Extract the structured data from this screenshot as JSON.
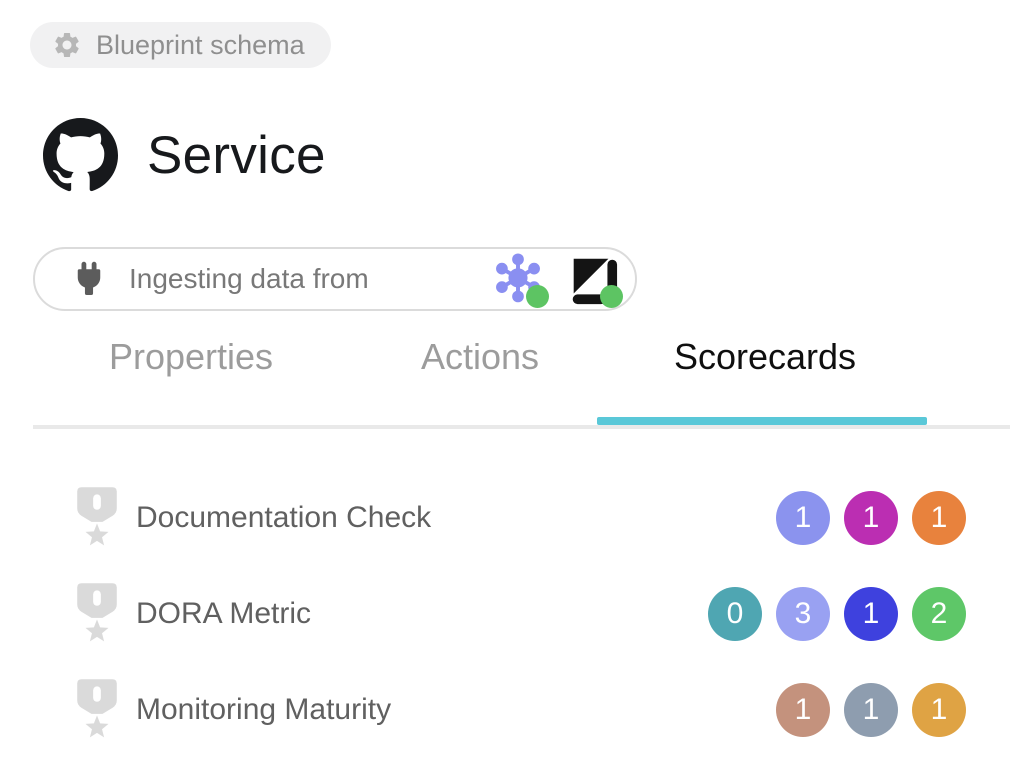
{
  "schema_badge": {
    "label": "Blueprint schema",
    "icon": "gear-icon"
  },
  "header": {
    "title": "Service",
    "icon": "github-logo"
  },
  "ingestion": {
    "label": "Ingesting data from",
    "icon": "plug-icon",
    "integrations": [
      {
        "name": "hub-network",
        "icon": "hub-network-icon",
        "status_color": "#5dc463"
      },
      {
        "name": "arrow-square",
        "icon": "arrow-square-icon",
        "status_color": "#5dc463"
      }
    ]
  },
  "tabs": {
    "items": [
      {
        "label": "Properties",
        "active": false
      },
      {
        "label": "Actions",
        "active": false
      },
      {
        "label": "Scorecards",
        "active": true
      }
    ],
    "active_underline_color": "#5ac8d8"
  },
  "scorecards": [
    {
      "name": "Documentation Check",
      "icon": "medal-icon",
      "badges": [
        {
          "value": "1",
          "color": "#8b93ee"
        },
        {
          "value": "1",
          "color": "#bb2eb2"
        },
        {
          "value": "1",
          "color": "#e8823d"
        }
      ]
    },
    {
      "name": "DORA Metric",
      "icon": "medal-icon",
      "badges": [
        {
          "value": "0",
          "color": "#4fa6b2"
        },
        {
          "value": "3",
          "color": "#99a1f2"
        },
        {
          "value": "1",
          "color": "#3e41de"
        },
        {
          "value": "2",
          "color": "#5ec768"
        }
      ]
    },
    {
      "name": "Monitoring Maturity",
      "icon": "medal-icon",
      "badges": [
        {
          "value": "1",
          "color": "#c4927d"
        },
        {
          "value": "1",
          "color": "#8e9daf"
        },
        {
          "value": "1",
          "color": "#dfa344"
        }
      ]
    }
  ]
}
